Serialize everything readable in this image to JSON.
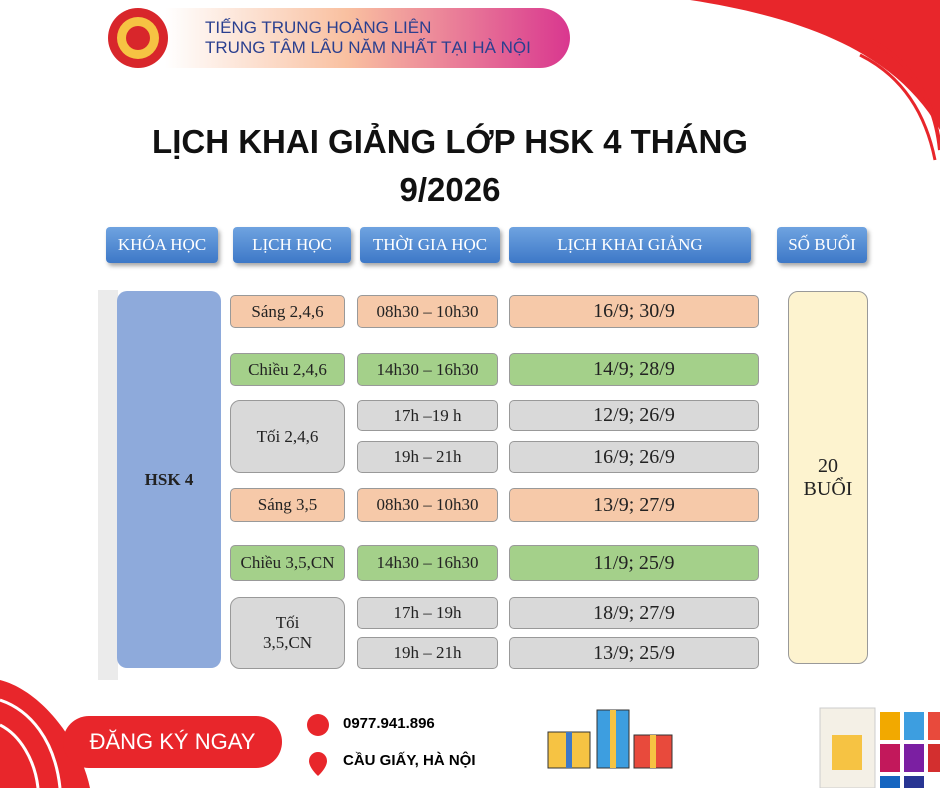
{
  "header": {
    "name": "TIẾNG TRUNG HOÀNG LIÊN",
    "tagline": "TRUNG TÂM LÂU NĂM NHẤT TẠI HÀ NỘI"
  },
  "title": "LỊCH KHAI GIẢNG LỚP HSK 4 THÁNG 9/2026",
  "table": {
    "headers": [
      "KHÓA HỌC",
      "LỊCH HỌC",
      "THỜI GIA HỌC",
      "LỊCH KHAI GIẢNG",
      "SỐ BUỔI"
    ],
    "course": "HSK 4",
    "sessions": "20 BUỔI",
    "groups": [
      {
        "schedule": "Sáng 2,4,6",
        "rows": [
          {
            "time": "08h30 – 10h30",
            "start": "16/9; 30/9"
          }
        ]
      },
      {
        "schedule": "Chiều 2,4,6",
        "rows": [
          {
            "time": "14h30 – 16h30",
            "start": "14/9; 28/9"
          }
        ]
      },
      {
        "schedule": "Tối 2,4,6",
        "rows": [
          {
            "time": "17h –19 h",
            "start": "12/9; 26/9"
          },
          {
            "time": "19h – 21h",
            "start": "16/9; 26/9"
          }
        ]
      },
      {
        "schedule": "Sáng 3,5",
        "rows": [
          {
            "time": "08h30 – 10h30",
            "start": "13/9; 27/9"
          }
        ]
      },
      {
        "schedule": "Chiều 3,5,CN",
        "rows": [
          {
            "time": "14h30 – 16h30",
            "start": "11/9; 25/9"
          }
        ]
      },
      {
        "schedule": "Tối 3,5,CN",
        "rows": [
          {
            "time": "17h – 19h",
            "start": "18/9; 27/9"
          },
          {
            "time": "19h – 21h",
            "start": "13/9; 25/9"
          }
        ]
      }
    ]
  },
  "footer": {
    "cta": "ĐĂNG KÝ NGAY",
    "phone": "0977.941.896",
    "address": "CẦU GIẤY, HÀ NỘI"
  }
}
